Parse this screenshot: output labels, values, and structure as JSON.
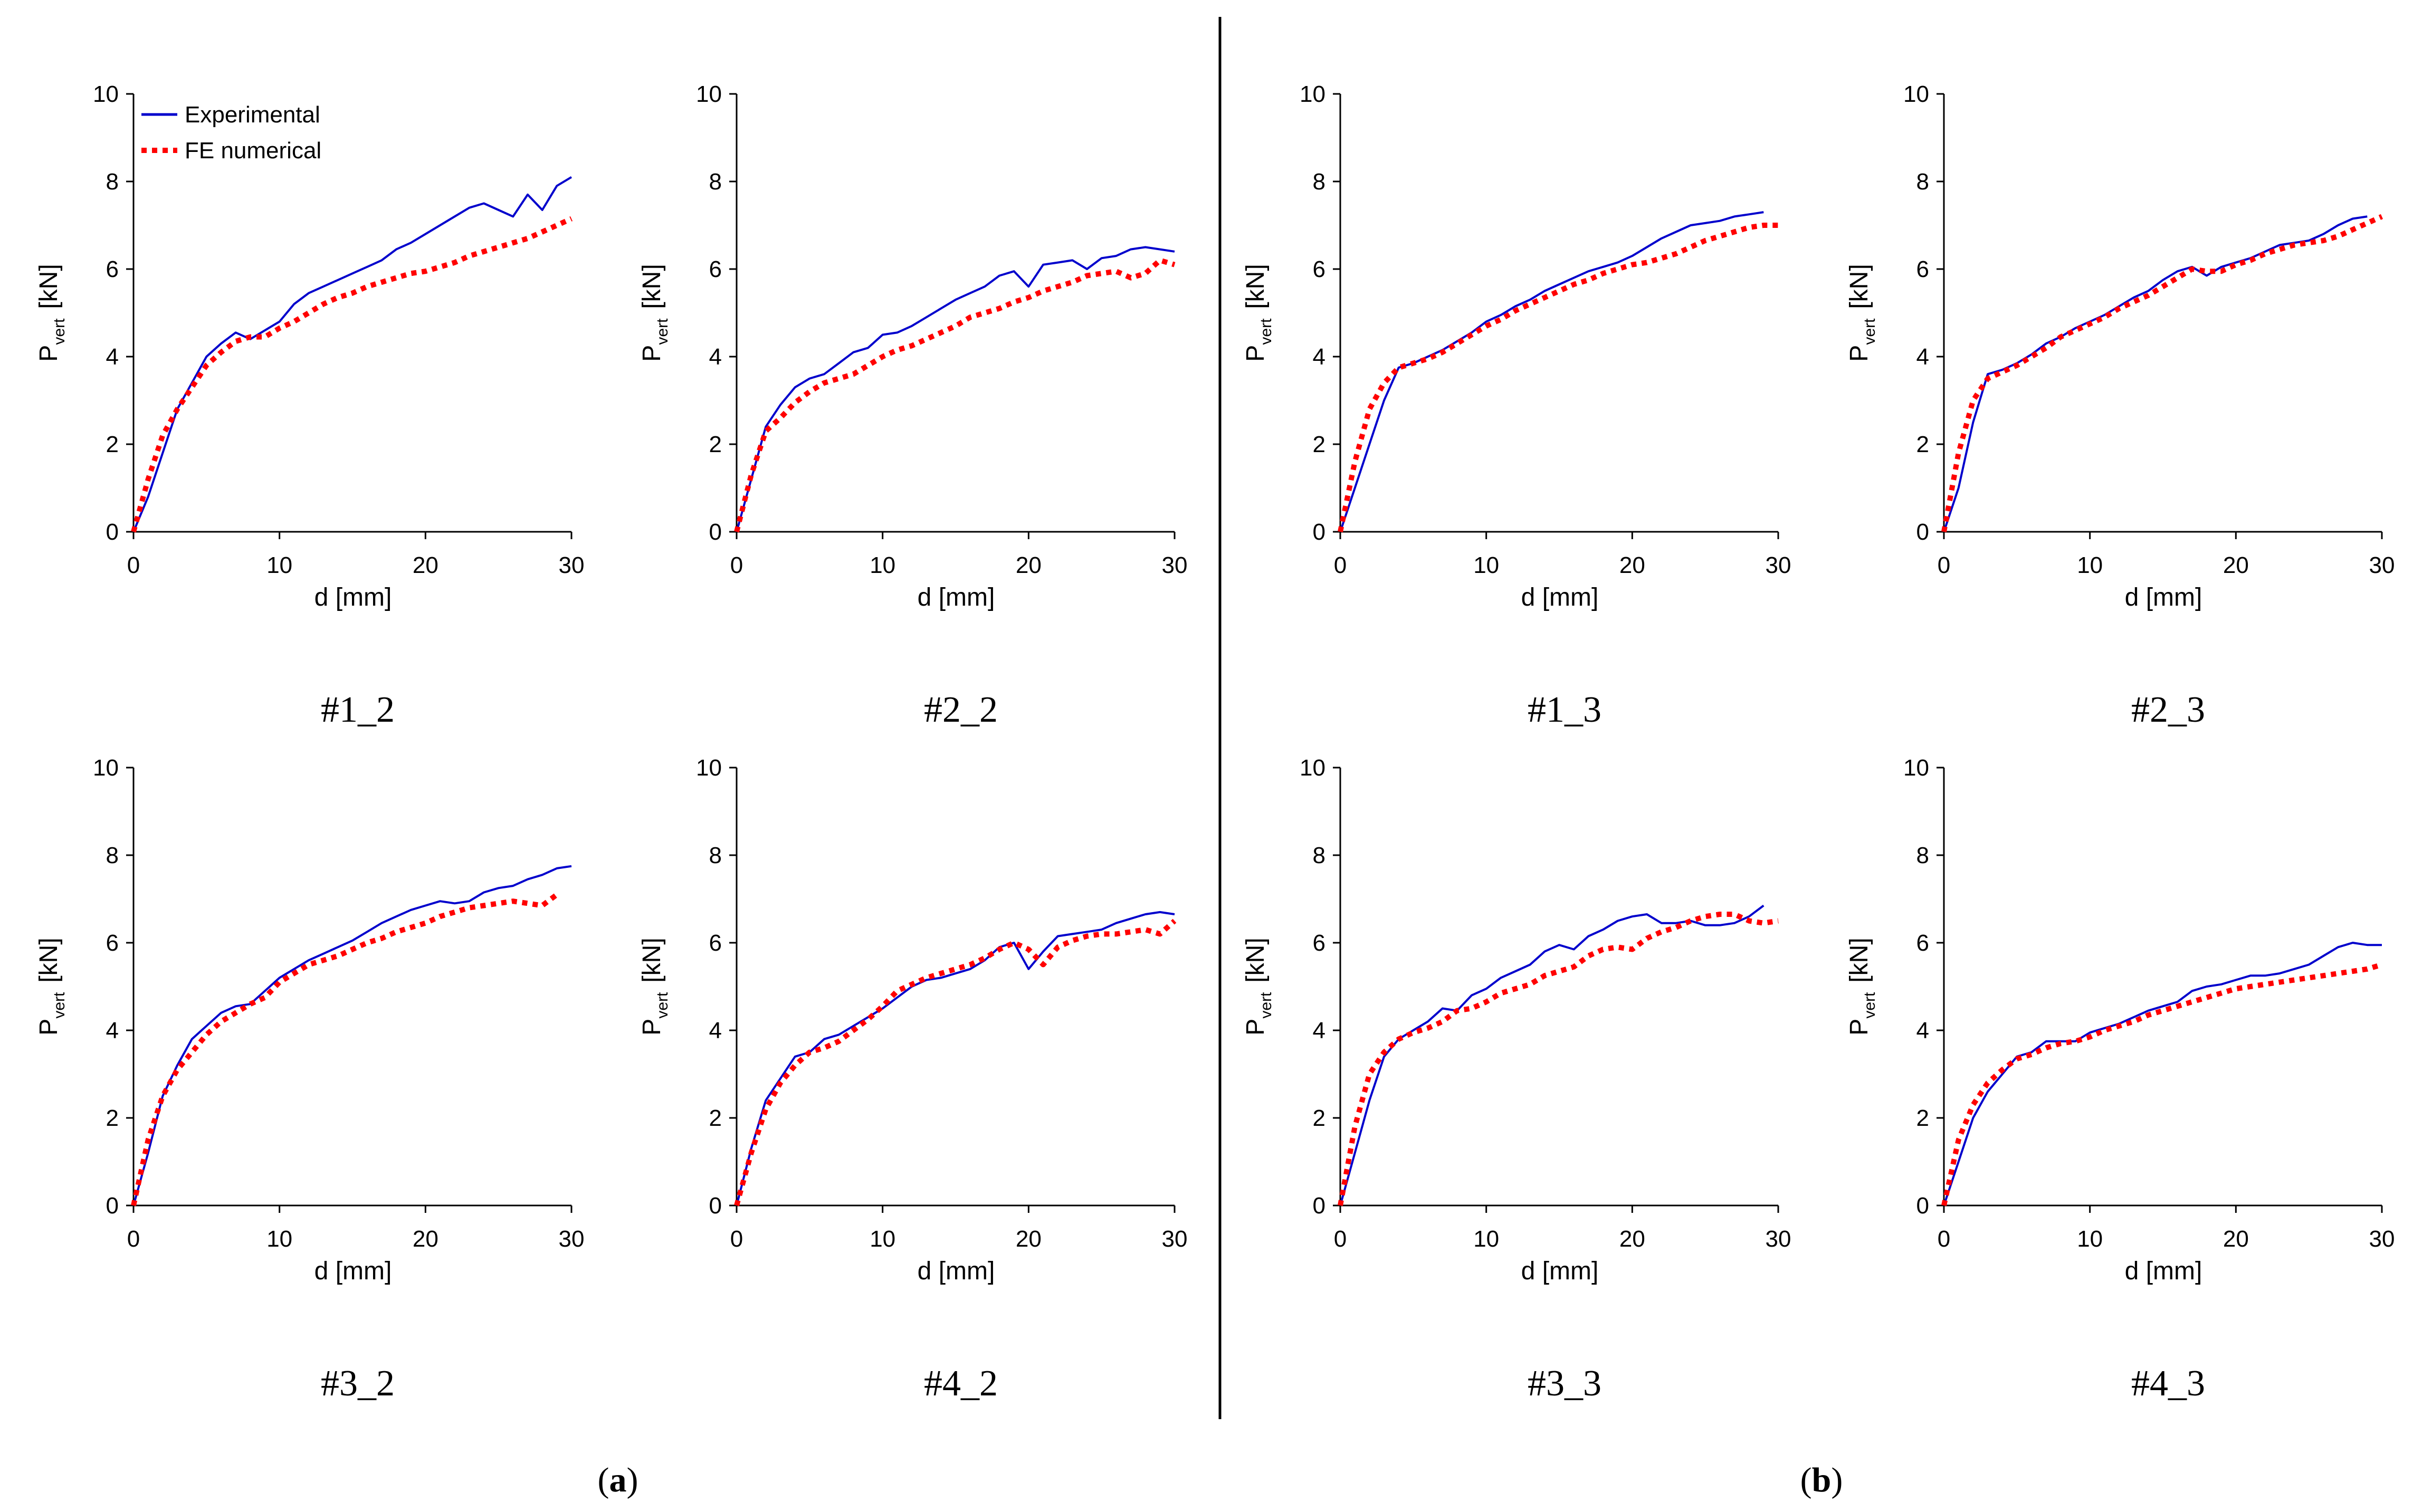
{
  "colors": {
    "experimental": "#0000cc",
    "numerical": "#ff0000",
    "axis": "#000000"
  },
  "legend": {
    "experimental": "Experimental",
    "numerical": "FE numerical"
  },
  "axes_common": {
    "xlabel": "d  [mm]",
    "ylabel_main": "P",
    "ylabel_sub": "vert",
    "ylabel_unit": "[kN]",
    "xlim": [
      0,
      30
    ],
    "ylim": [
      0,
      10
    ],
    "xticks": [
      0,
      10,
      20,
      30
    ],
    "yticks": [
      0,
      2,
      4,
      6,
      8,
      10
    ]
  },
  "group_labels": {
    "a": "a",
    "b": "b"
  },
  "chart_data": [
    {
      "type": "line",
      "title": "#1_2",
      "series": [
        {
          "name": "Experimental",
          "x": [
            0,
            1,
            2,
            3,
            4,
            5,
            6,
            7,
            8,
            9,
            10,
            11,
            12,
            13,
            14,
            15,
            16,
            17,
            18,
            19,
            20,
            21,
            22,
            23,
            24,
            25,
            26,
            27,
            28,
            29,
            30
          ],
          "y": [
            0,
            0.8,
            1.8,
            2.8,
            3.4,
            4.0,
            4.3,
            4.55,
            4.4,
            4.6,
            4.8,
            5.2,
            5.45,
            5.6,
            5.75,
            5.9,
            6.05,
            6.2,
            6.45,
            6.6,
            6.8,
            7.0,
            7.2,
            7.4,
            7.5,
            7.35,
            7.2,
            7.7,
            7.35,
            7.9,
            8.1
          ]
        },
        {
          "name": "FE numerical",
          "x": [
            0,
            1,
            2,
            3,
            4,
            5,
            6,
            7,
            8,
            9,
            10,
            11,
            12,
            13,
            14,
            15,
            16,
            17,
            18,
            19,
            20,
            21,
            22,
            23,
            24,
            25,
            26,
            27,
            28,
            29,
            30
          ],
          "y": [
            0,
            1.2,
            2.2,
            2.8,
            3.3,
            3.8,
            4.1,
            4.35,
            4.45,
            4.45,
            4.65,
            4.8,
            5.0,
            5.2,
            5.35,
            5.45,
            5.6,
            5.7,
            5.8,
            5.9,
            5.95,
            6.05,
            6.15,
            6.3,
            6.4,
            6.5,
            6.6,
            6.7,
            6.85,
            7.0,
            7.15
          ]
        }
      ]
    },
    {
      "type": "line",
      "title": "#2_2",
      "series": [
        {
          "name": "Experimental",
          "x": [
            0,
            1,
            2,
            3,
            4,
            5,
            6,
            7,
            8,
            9,
            10,
            11,
            12,
            13,
            14,
            15,
            16,
            17,
            18,
            19,
            20,
            21,
            22,
            23,
            24,
            25,
            26,
            27,
            28,
            29,
            30
          ],
          "y": [
            0,
            1.2,
            2.4,
            2.9,
            3.3,
            3.5,
            3.6,
            3.85,
            4.1,
            4.2,
            4.5,
            4.55,
            4.7,
            4.9,
            5.1,
            5.3,
            5.45,
            5.6,
            5.85,
            5.95,
            5.6,
            6.1,
            6.15,
            6.2,
            6.0,
            6.25,
            6.3,
            6.45,
            6.5,
            6.45,
            6.4
          ]
        },
        {
          "name": "FE numerical",
          "x": [
            0,
            1,
            2,
            3,
            4,
            5,
            6,
            7,
            8,
            9,
            10,
            11,
            12,
            13,
            14,
            15,
            16,
            17,
            18,
            19,
            20,
            21,
            22,
            23,
            24,
            25,
            26,
            27,
            28,
            29,
            30
          ],
          "y": [
            0,
            1.3,
            2.3,
            2.6,
            2.95,
            3.2,
            3.4,
            3.5,
            3.6,
            3.8,
            4.0,
            4.15,
            4.25,
            4.4,
            4.55,
            4.7,
            4.9,
            5.0,
            5.1,
            5.25,
            5.35,
            5.5,
            5.6,
            5.7,
            5.85,
            5.9,
            5.95,
            5.8,
            5.9,
            6.2,
            6.1
          ]
        }
      ]
    },
    {
      "type": "line",
      "title": "#1_3",
      "series": [
        {
          "name": "Experimental",
          "x": [
            0,
            1,
            2,
            3,
            4,
            5,
            6,
            7,
            8,
            9,
            10,
            11,
            12,
            13,
            14,
            15,
            16,
            17,
            18,
            19,
            20,
            21,
            22,
            23,
            24,
            25,
            26,
            27,
            28,
            29
          ],
          "y": [
            0,
            1.0,
            2.0,
            3.0,
            3.75,
            3.85,
            4.0,
            4.15,
            4.35,
            4.55,
            4.8,
            4.95,
            5.15,
            5.3,
            5.5,
            5.65,
            5.8,
            5.95,
            6.05,
            6.15,
            6.3,
            6.5,
            6.7,
            6.85,
            7.0,
            7.05,
            7.1,
            7.2,
            7.25,
            7.3
          ]
        },
        {
          "name": "FE numerical",
          "x": [
            0,
            1,
            2,
            3,
            4,
            5,
            6,
            7,
            8,
            9,
            10,
            11,
            12,
            13,
            14,
            15,
            16,
            17,
            18,
            19,
            20,
            21,
            22,
            23,
            24,
            25,
            26,
            27,
            28,
            29,
            30
          ],
          "y": [
            0,
            1.6,
            2.8,
            3.4,
            3.75,
            3.85,
            3.95,
            4.1,
            4.3,
            4.5,
            4.7,
            4.85,
            5.05,
            5.2,
            5.35,
            5.5,
            5.65,
            5.75,
            5.9,
            6.0,
            6.1,
            6.15,
            6.25,
            6.35,
            6.5,
            6.65,
            6.75,
            6.85,
            6.95,
            7.0,
            7.0
          ]
        }
      ]
    },
    {
      "type": "line",
      "title": "#2_3",
      "series": [
        {
          "name": "Experimental",
          "x": [
            0,
            1,
            2,
            3,
            4,
            5,
            6,
            7,
            8,
            9,
            10,
            11,
            12,
            13,
            14,
            15,
            16,
            17,
            18,
            19,
            20,
            21,
            22,
            23,
            24,
            25,
            26,
            27,
            28,
            29
          ],
          "y": [
            0,
            1.0,
            2.5,
            3.6,
            3.7,
            3.85,
            4.05,
            4.3,
            4.45,
            4.65,
            4.8,
            4.95,
            5.15,
            5.35,
            5.5,
            5.75,
            5.95,
            6.05,
            5.85,
            6.05,
            6.15,
            6.25,
            6.4,
            6.55,
            6.6,
            6.65,
            6.8,
            7.0,
            7.15,
            7.2
          ]
        },
        {
          "name": "FE numerical",
          "x": [
            0,
            1,
            2,
            3,
            4,
            5,
            6,
            7,
            8,
            9,
            10,
            11,
            12,
            13,
            14,
            15,
            16,
            17,
            18,
            19,
            20,
            21,
            22,
            23,
            24,
            25,
            26,
            27,
            28,
            29,
            30
          ],
          "y": [
            0,
            1.8,
            3.0,
            3.5,
            3.65,
            3.8,
            4.0,
            4.2,
            4.45,
            4.6,
            4.75,
            4.9,
            5.1,
            5.25,
            5.4,
            5.6,
            5.8,
            6.0,
            5.95,
            5.95,
            6.1,
            6.2,
            6.35,
            6.45,
            6.55,
            6.6,
            6.65,
            6.75,
            6.9,
            7.05,
            7.2
          ]
        }
      ]
    },
    {
      "type": "line",
      "title": "#3_2",
      "series": [
        {
          "name": "Experimental",
          "x": [
            0,
            1,
            2,
            3,
            4,
            5,
            6,
            7,
            8,
            9,
            10,
            11,
            12,
            13,
            14,
            15,
            16,
            17,
            18,
            19,
            20,
            21,
            22,
            23,
            24,
            25,
            26,
            27,
            28,
            29,
            30
          ],
          "y": [
            0,
            1.2,
            2.5,
            3.2,
            3.8,
            4.1,
            4.4,
            4.55,
            4.6,
            4.9,
            5.2,
            5.4,
            5.6,
            5.75,
            5.9,
            6.05,
            6.25,
            6.45,
            6.6,
            6.75,
            6.85,
            6.95,
            6.9,
            6.95,
            7.15,
            7.25,
            7.3,
            7.45,
            7.55,
            7.7,
            7.75
          ]
        },
        {
          "name": "FE numerical",
          "x": [
            0,
            1,
            2,
            3,
            4,
            5,
            6,
            7,
            8,
            9,
            10,
            11,
            12,
            13,
            14,
            15,
            16,
            17,
            18,
            19,
            20,
            21,
            22,
            23,
            24,
            25,
            26,
            27,
            28,
            29
          ],
          "y": [
            0,
            1.5,
            2.5,
            3.1,
            3.5,
            3.9,
            4.2,
            4.4,
            4.6,
            4.75,
            5.1,
            5.3,
            5.5,
            5.6,
            5.7,
            5.85,
            6.0,
            6.1,
            6.25,
            6.35,
            6.45,
            6.6,
            6.7,
            6.8,
            6.85,
            6.9,
            6.95,
            6.9,
            6.85,
            7.1
          ]
        }
      ]
    },
    {
      "type": "line",
      "title": "#4_2",
      "series": [
        {
          "name": "Experimental",
          "x": [
            0,
            1,
            2,
            3,
            4,
            5,
            6,
            7,
            8,
            9,
            10,
            11,
            12,
            13,
            14,
            15,
            16,
            17,
            18,
            19,
            20,
            21,
            22,
            23,
            24,
            25,
            26,
            27,
            28,
            29,
            30
          ],
          "y": [
            0,
            1.3,
            2.4,
            2.9,
            3.4,
            3.5,
            3.8,
            3.9,
            4.1,
            4.3,
            4.5,
            4.75,
            5.0,
            5.15,
            5.2,
            5.3,
            5.4,
            5.6,
            5.9,
            6.0,
            5.4,
            5.8,
            6.15,
            6.2,
            6.25,
            6.3,
            6.45,
            6.55,
            6.65,
            6.7,
            6.65
          ]
        },
        {
          "name": "FE numerical",
          "x": [
            0,
            1,
            2,
            3,
            4,
            5,
            6,
            7,
            8,
            9,
            10,
            11,
            12,
            13,
            14,
            15,
            16,
            17,
            18,
            19,
            20,
            21,
            22,
            23,
            24,
            25,
            26,
            27,
            28,
            29,
            30
          ],
          "y": [
            0,
            1.2,
            2.2,
            2.8,
            3.2,
            3.5,
            3.6,
            3.75,
            4.0,
            4.25,
            4.55,
            4.9,
            5.05,
            5.2,
            5.3,
            5.4,
            5.5,
            5.65,
            5.85,
            6.0,
            5.85,
            5.5,
            5.9,
            6.05,
            6.15,
            6.2,
            6.2,
            6.25,
            6.3,
            6.2,
            6.5
          ]
        }
      ]
    },
    {
      "type": "line",
      "title": "#3_3",
      "series": [
        {
          "name": "Experimental",
          "x": [
            0,
            1,
            2,
            3,
            4,
            5,
            6,
            7,
            8,
            9,
            10,
            11,
            12,
            13,
            14,
            15,
            16,
            17,
            18,
            19,
            20,
            21,
            22,
            23,
            24,
            25,
            26,
            27,
            28,
            29
          ],
          "y": [
            0,
            1.2,
            2.4,
            3.4,
            3.8,
            4.0,
            4.2,
            4.5,
            4.45,
            4.8,
            4.95,
            5.2,
            5.35,
            5.5,
            5.8,
            5.95,
            5.85,
            6.15,
            6.3,
            6.5,
            6.6,
            6.65,
            6.45,
            6.45,
            6.5,
            6.4,
            6.4,
            6.45,
            6.6,
            6.85
          ]
        },
        {
          "name": "FE numerical",
          "x": [
            0,
            1,
            2,
            3,
            4,
            5,
            6,
            7,
            8,
            9,
            10,
            11,
            12,
            13,
            14,
            15,
            16,
            17,
            18,
            19,
            20,
            21,
            22,
            23,
            24,
            25,
            26,
            27,
            28,
            29,
            30
          ],
          "y": [
            0,
            1.8,
            3.0,
            3.5,
            3.8,
            3.95,
            4.05,
            4.2,
            4.45,
            4.5,
            4.65,
            4.85,
            4.95,
            5.05,
            5.25,
            5.35,
            5.45,
            5.7,
            5.85,
            5.9,
            5.85,
            6.1,
            6.25,
            6.35,
            6.5,
            6.6,
            6.65,
            6.65,
            6.5,
            6.45,
            6.5
          ]
        }
      ]
    },
    {
      "type": "line",
      "title": "#4_3",
      "series": [
        {
          "name": "Experimental",
          "x": [
            0,
            1,
            2,
            3,
            4,
            5,
            6,
            7,
            8,
            9,
            10,
            11,
            12,
            13,
            14,
            15,
            16,
            17,
            18,
            19,
            20,
            21,
            22,
            23,
            24,
            25,
            26,
            27,
            28,
            29,
            30
          ],
          "y": [
            0,
            1.0,
            2.0,
            2.6,
            3.0,
            3.4,
            3.5,
            3.75,
            3.75,
            3.75,
            3.95,
            4.05,
            4.15,
            4.3,
            4.45,
            4.55,
            4.65,
            4.9,
            5.0,
            5.05,
            5.15,
            5.25,
            5.25,
            5.3,
            5.4,
            5.5,
            5.7,
            5.9,
            6.0,
            5.95,
            5.95
          ]
        },
        {
          "name": "FE numerical",
          "x": [
            0,
            1,
            2,
            3,
            4,
            5,
            6,
            7,
            8,
            9,
            10,
            11,
            12,
            13,
            14,
            15,
            16,
            17,
            18,
            19,
            20,
            21,
            22,
            23,
            24,
            25,
            26,
            27,
            28,
            29,
            30
          ],
          "y": [
            0,
            1.5,
            2.3,
            2.8,
            3.1,
            3.35,
            3.45,
            3.6,
            3.7,
            3.75,
            3.85,
            4.0,
            4.1,
            4.2,
            4.35,
            4.45,
            4.55,
            4.65,
            4.75,
            4.85,
            4.95,
            5.0,
            5.05,
            5.1,
            5.15,
            5.2,
            5.25,
            5.3,
            5.35,
            5.4,
            5.5
          ]
        }
      ]
    }
  ]
}
